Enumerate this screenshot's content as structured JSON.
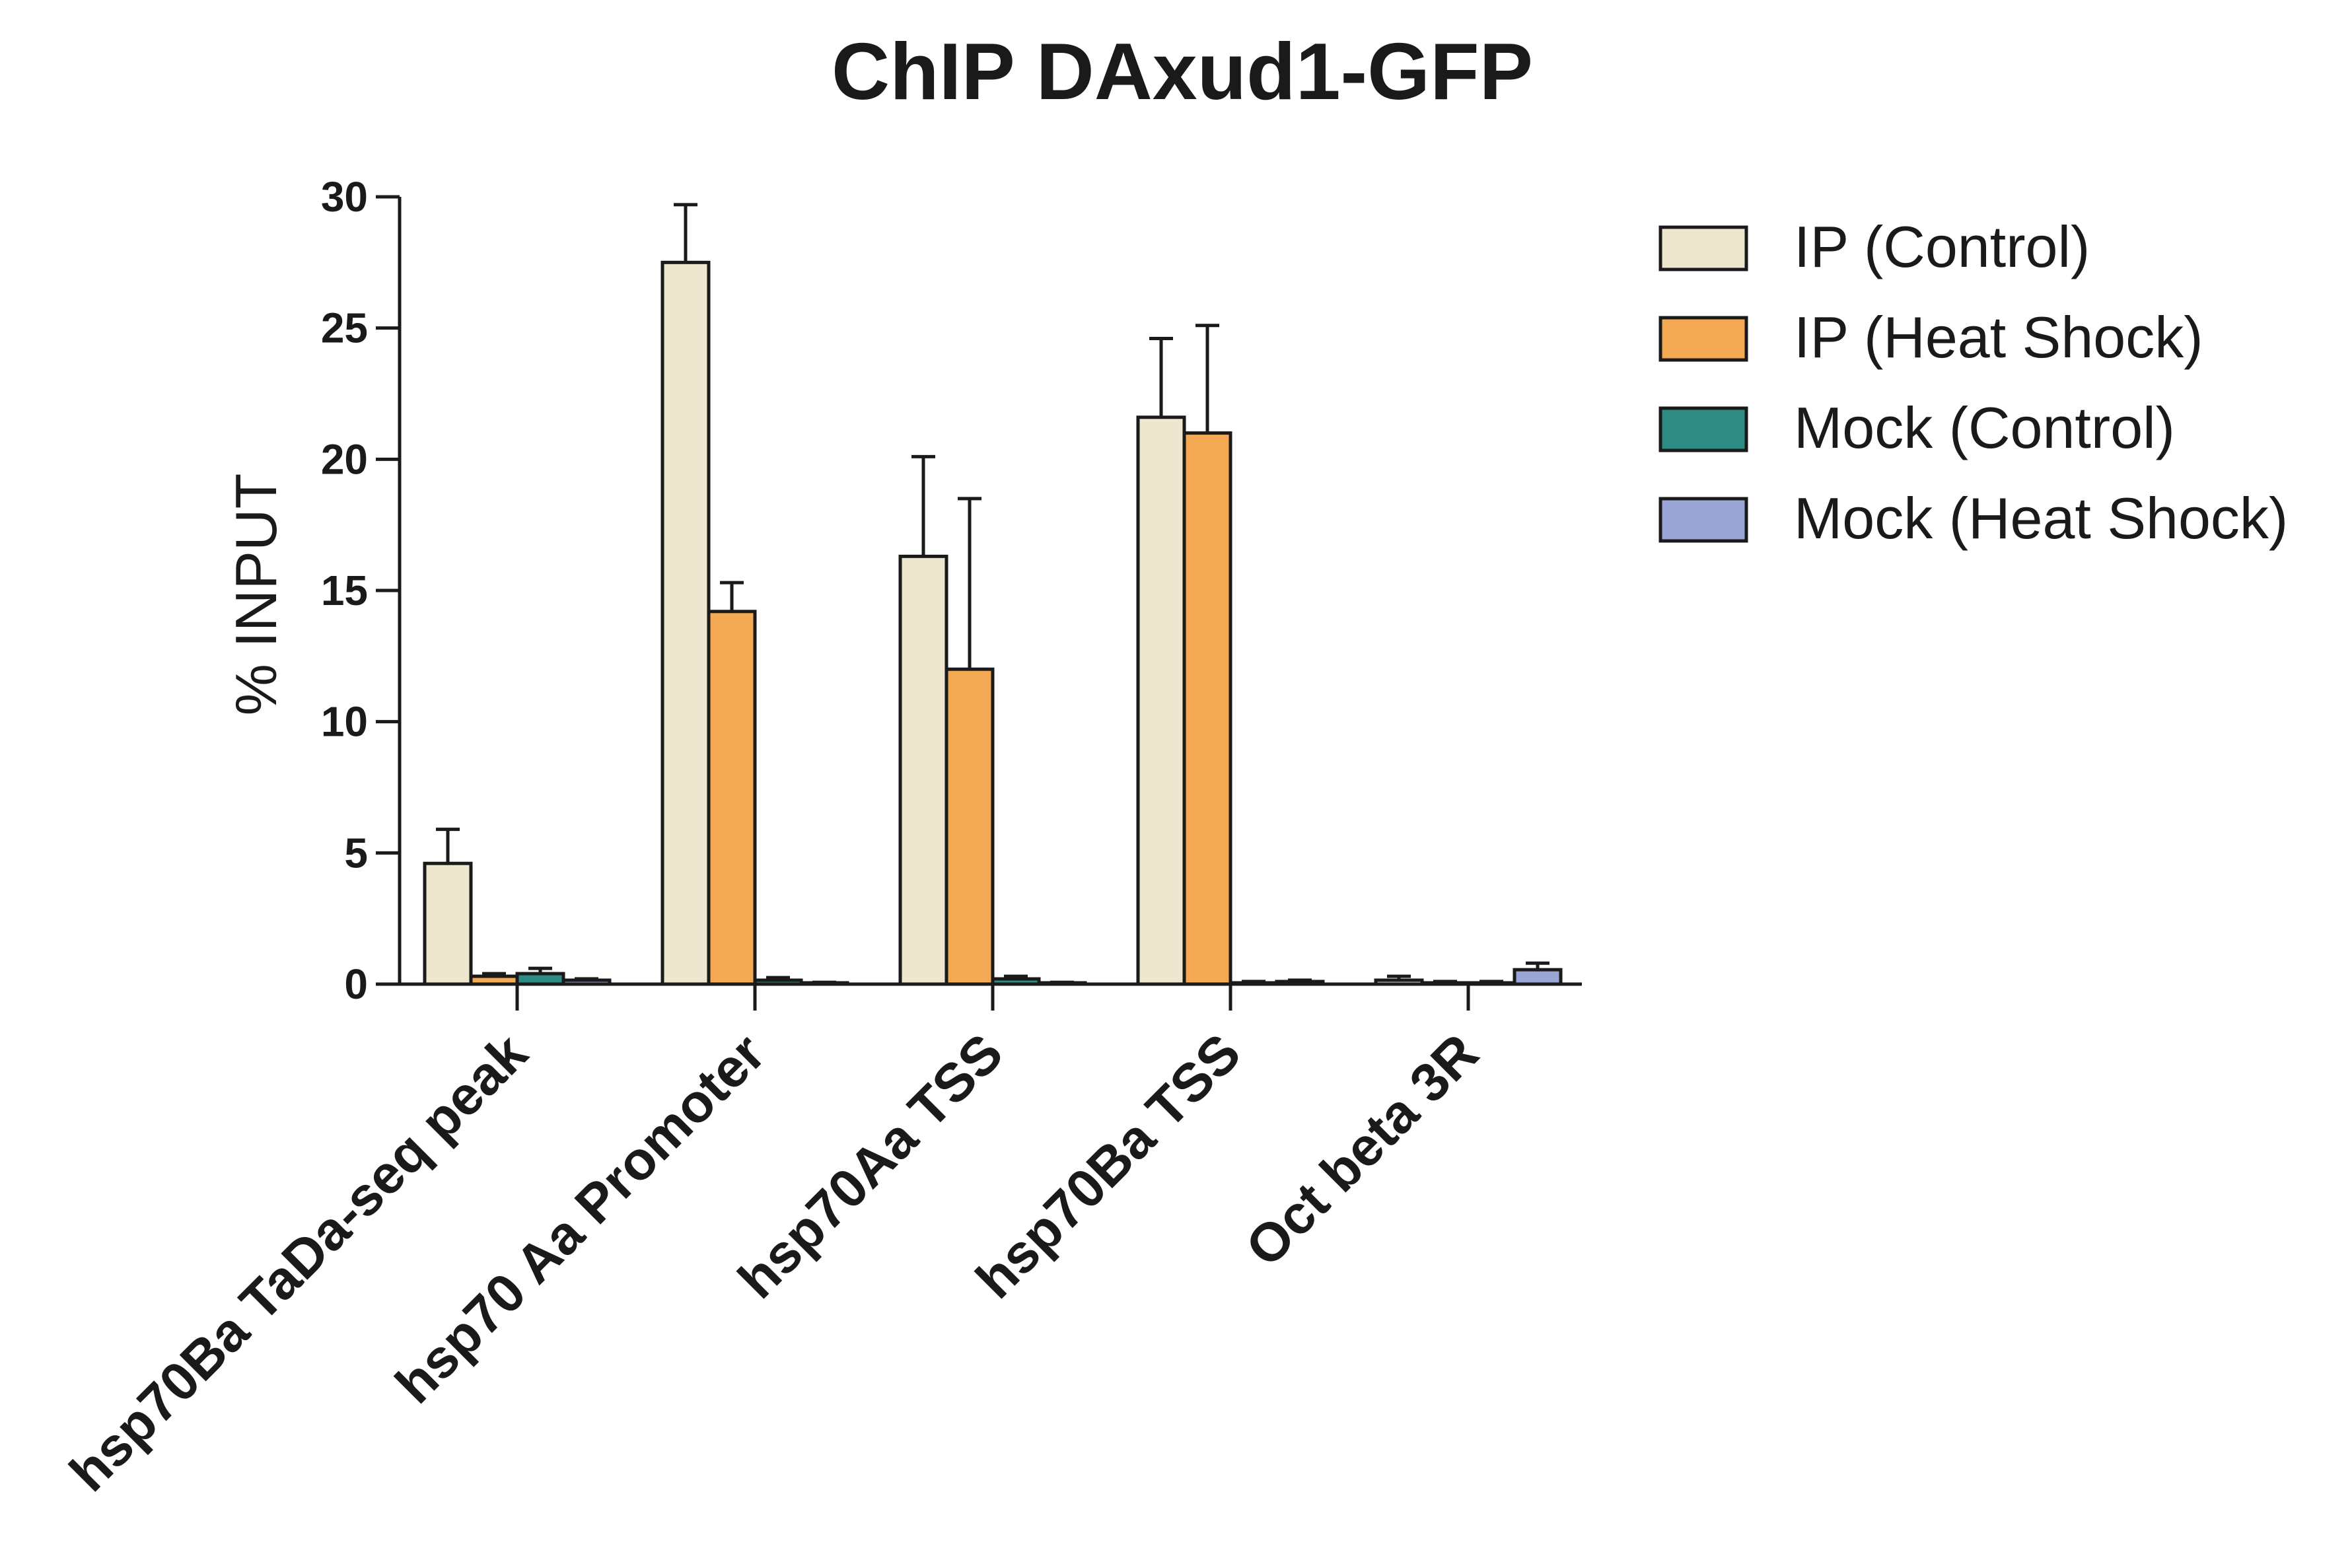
{
  "chart_data": {
    "type": "bar",
    "title": "ChIP DAxud1-GFP",
    "ylabel": "% INPUT",
    "xlabel": "",
    "ylim": [
      0,
      30
    ],
    "yticks": [
      0,
      5,
      10,
      15,
      20,
      25,
      30
    ],
    "grid": false,
    "legend_position": "right",
    "error_bars": true,
    "categories": [
      "hsp70Ba TaDa-seq peak",
      "hsp70 Aa Promoter",
      "hsp70Aa TSS",
      "hsp70Ba TSS",
      "Oct beta 3R"
    ],
    "series": [
      {
        "name": "IP (Control)",
        "color": "#efe6cf",
        "values": [
          4.6,
          27.5,
          16.3,
          21.6,
          0.15
        ],
        "errors": [
          1.3,
          2.2,
          3.8,
          3.0,
          0.15
        ]
      },
      {
        "name": "IP (Heat Shock)",
        "color": "#f4a955",
        "values": [
          0.3,
          14.2,
          12.0,
          21.0,
          0.05
        ],
        "errors": [
          0.1,
          1.1,
          6.5,
          4.1,
          0.05
        ]
      },
      {
        "name": "Mock (Control)",
        "color": "#2f8c85",
        "values": [
          0.4,
          0.15,
          0.2,
          0.05,
          0.05
        ],
        "errors": [
          0.2,
          0.1,
          0.1,
          0.05,
          0.05
        ]
      },
      {
        "name": "Mock (Heat Shock)",
        "color": "#9aa7d6",
        "values": [
          0.15,
          0.05,
          0.05,
          0.1,
          0.55
        ],
        "errors": [
          0.05,
          0.02,
          0.02,
          0.05,
          0.25
        ]
      }
    ]
  }
}
